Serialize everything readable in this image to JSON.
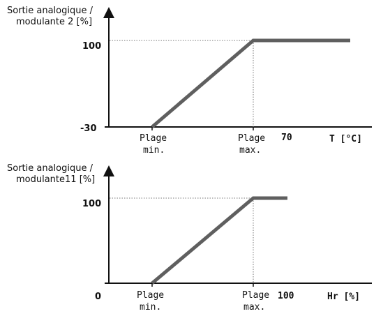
{
  "chart_data": [
    {
      "type": "line",
      "ylabel_lines": [
        "Sortie analogique /",
        "modulante  2 [%]"
      ],
      "xlabel": "T [°C]",
      "y_ticks": [
        "100",
        "-30"
      ],
      "x_ticks": [
        {
          "label_lines": [
            "Plage",
            "min."
          ]
        },
        {
          "label_lines": [
            "Plage",
            "max."
          ]
        },
        {
          "label_lines": [
            "70"
          ]
        }
      ],
      "series": [
        {
          "points": [
            [
              "Plage min.",
              "-30"
            ],
            [
              "Plage max.",
              "100"
            ],
            [
              "70+",
              "100"
            ]
          ]
        }
      ],
      "colors": {
        "line": "#5f5f5f",
        "axis": "#111111",
        "guide": "#777777"
      }
    },
    {
      "type": "line",
      "ylabel_lines": [
        "Sortie analogique /",
        "modulante11 [%]"
      ],
      "xlabel": "Hr [%]",
      "y_ticks": [
        "100",
        "0"
      ],
      "x_ticks": [
        {
          "label_lines": [
            "Plage",
            "min."
          ]
        },
        {
          "label_lines": [
            "Plage",
            "max."
          ]
        },
        {
          "label_lines": [
            "100"
          ]
        }
      ],
      "series": [
        {
          "points": [
            [
              "Plage min.",
              "0"
            ],
            [
              "Plage max.",
              "100"
            ],
            [
              "100",
              "100"
            ]
          ]
        }
      ],
      "colors": {
        "line": "#5f5f5f",
        "axis": "#111111",
        "guide": "#777777"
      }
    }
  ]
}
